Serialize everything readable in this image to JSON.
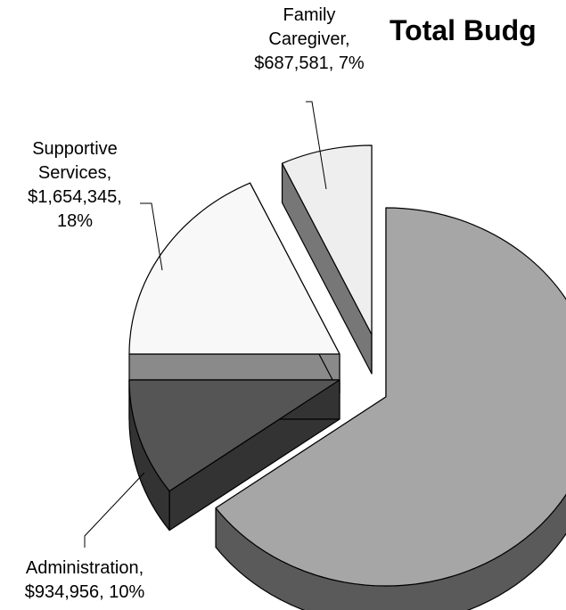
{
  "chart_data": {
    "type": "pie",
    "title": "Total Budg",
    "slices": [
      {
        "label": "Family Caregiver",
        "value": "$687,581",
        "percent": 7,
        "color": "#eeeeee",
        "label_lines": [
          "Family",
          "Caregiver,",
          "$687,581, 7%"
        ]
      },
      {
        "label": "Supportive Services",
        "value": "$1,654,345",
        "percent": 18,
        "color": "#f8f8f8",
        "label_lines": [
          "Supportive",
          "Services,",
          "$1,654,345,",
          "18%"
        ]
      },
      {
        "label": "Administration",
        "value": "$934,956",
        "percent": 10,
        "color": "#555555",
        "label_lines": [
          "Administration,",
          "$934,956, 10%"
        ]
      },
      {
        "label": "",
        "value": "",
        "percent": 65,
        "color": "#a6a6a6",
        "label_lines": []
      }
    ],
    "legend": "none",
    "style": "3d-exploded"
  }
}
